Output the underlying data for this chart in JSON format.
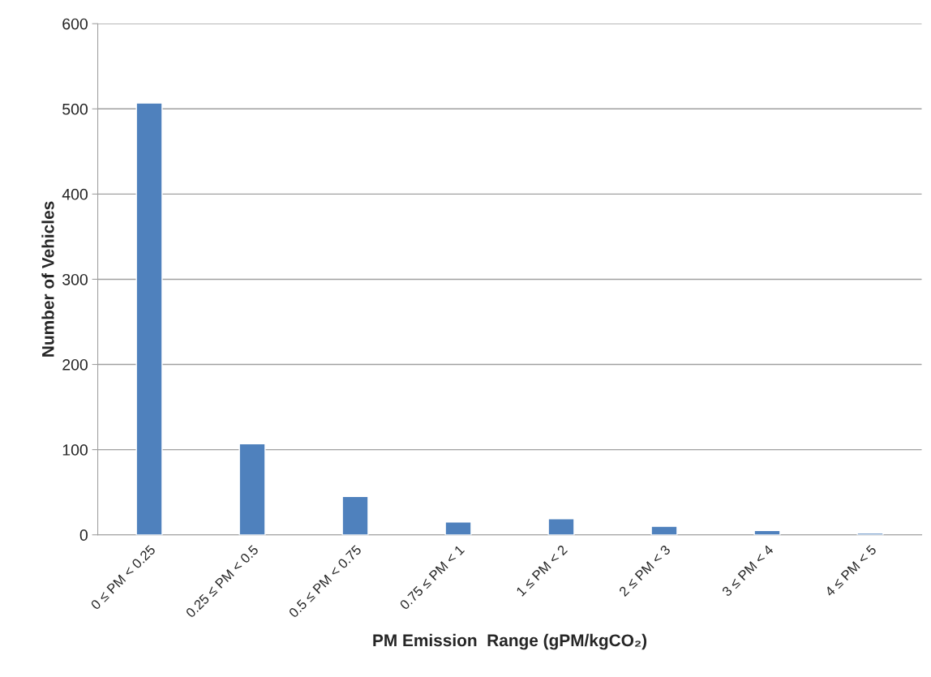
{
  "chart_data": {
    "type": "bar",
    "xlabel": "PM Emission  Range (gPM/kgCO₂)",
    "ylabel": "Number of Vehicles",
    "categories": [
      "0 ≤ PM < 0.25",
      "0.25 ≤ PM < 0.5",
      "0.5 ≤ PM < 0.75",
      "0.75 ≤ PM < 1",
      "1 ≤ PM < 2",
      "2 ≤ PM < 3",
      "3 ≤ PM < 4",
      "4 ≤ PM < 5"
    ],
    "values": [
      507,
      107,
      45,
      15,
      19,
      10,
      5,
      2
    ],
    "color": "#4f81bd",
    "ylim": [
      0,
      600
    ],
    "yticks": [
      0,
      100,
      200,
      300,
      400,
      500,
      600
    ],
    "grid": "y",
    "legend": false
  }
}
